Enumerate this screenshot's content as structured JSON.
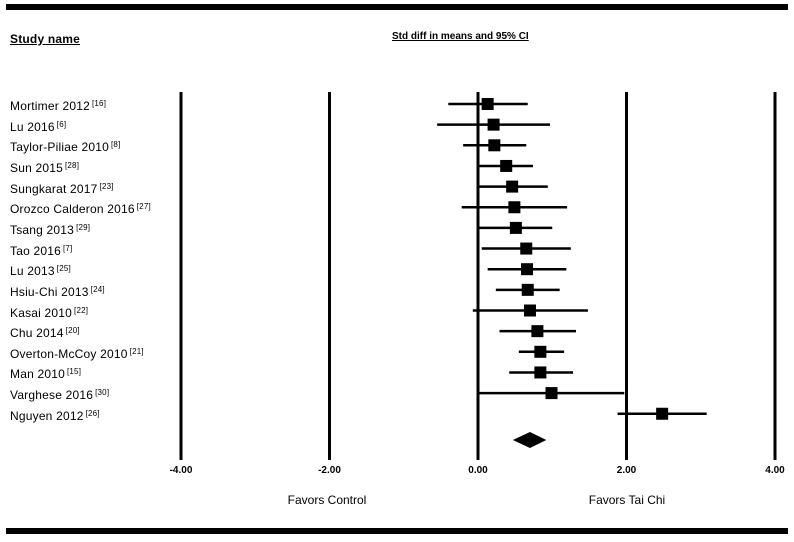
{
  "header": {
    "study_name": "Study name",
    "ci_label": "Std diff in means and 95% CI"
  },
  "chart_data": {
    "type": "forest",
    "title": "",
    "xlim": [
      -4,
      4
    ],
    "x_ticks": [
      {
        "value": -4,
        "label": "-4.00"
      },
      {
        "value": -2,
        "label": "-2.00"
      },
      {
        "value": 0,
        "label": "0.00"
      },
      {
        "value": 2,
        "label": "2.00"
      },
      {
        "value": 4,
        "label": "4.00"
      }
    ],
    "favors_left": "Favors Control",
    "favors_right": "Favors Tai Chi",
    "studies": [
      {
        "name": "Mortimer 2012",
        "ref": "[16]",
        "estimate": 0.13,
        "lower": -0.4,
        "upper": 0.67
      },
      {
        "name": "Lu 2016",
        "ref": "[6]",
        "estimate": 0.21,
        "lower": -0.55,
        "upper": 0.97
      },
      {
        "name": "Taylor-Piliae 2010",
        "ref": "[8]",
        "estimate": 0.22,
        "lower": -0.2,
        "upper": 0.65
      },
      {
        "name": "Sun 2015",
        "ref": "[28]",
        "estimate": 0.38,
        "lower": 0.02,
        "upper": 0.74
      },
      {
        "name": "Sungkarat 2017",
        "ref": "[23]",
        "estimate": 0.46,
        "lower": -0.02,
        "upper": 0.94
      },
      {
        "name": "Orozco Calderon 2016",
        "ref": "[27]",
        "estimate": 0.49,
        "lower": -0.22,
        "upper": 1.2
      },
      {
        "name": "Tsang 2013",
        "ref": "[29]",
        "estimate": 0.51,
        "lower": 0.02,
        "upper": 1.0
      },
      {
        "name": "Tao 2016",
        "ref": "[7]",
        "estimate": 0.65,
        "lower": 0.05,
        "upper": 1.25
      },
      {
        "name": "Lu 2013",
        "ref": "[25]",
        "estimate": 0.66,
        "lower": 0.13,
        "upper": 1.19
      },
      {
        "name": "Hsiu-Chi 2013",
        "ref": "[24]",
        "estimate": 0.67,
        "lower": 0.24,
        "upper": 1.1
      },
      {
        "name": "Kasai 2010",
        "ref": "[22]",
        "estimate": 0.7,
        "lower": -0.07,
        "upper": 1.48
      },
      {
        "name": "Chu 2014",
        "ref": "[20]",
        "estimate": 0.8,
        "lower": 0.29,
        "upper": 1.32
      },
      {
        "name": "Overton-McCoy 2010",
        "ref": "[21]",
        "estimate": 0.84,
        "lower": 0.55,
        "upper": 1.16
      },
      {
        "name": "Man 2010",
        "ref": "[15]",
        "estimate": 0.84,
        "lower": 0.42,
        "upper": 1.28
      },
      {
        "name": "Varghese 2016",
        "ref": "[30]",
        "estimate": 0.99,
        "lower": 0.02,
        "upper": 1.97
      },
      {
        "name": "Nguyen 2012",
        "ref": "[26]",
        "estimate": 2.48,
        "lower": 1.88,
        "upper": 3.08
      }
    ],
    "pooled": {
      "estimate": 0.7,
      "lower": 0.47,
      "upper": 0.92
    }
  }
}
